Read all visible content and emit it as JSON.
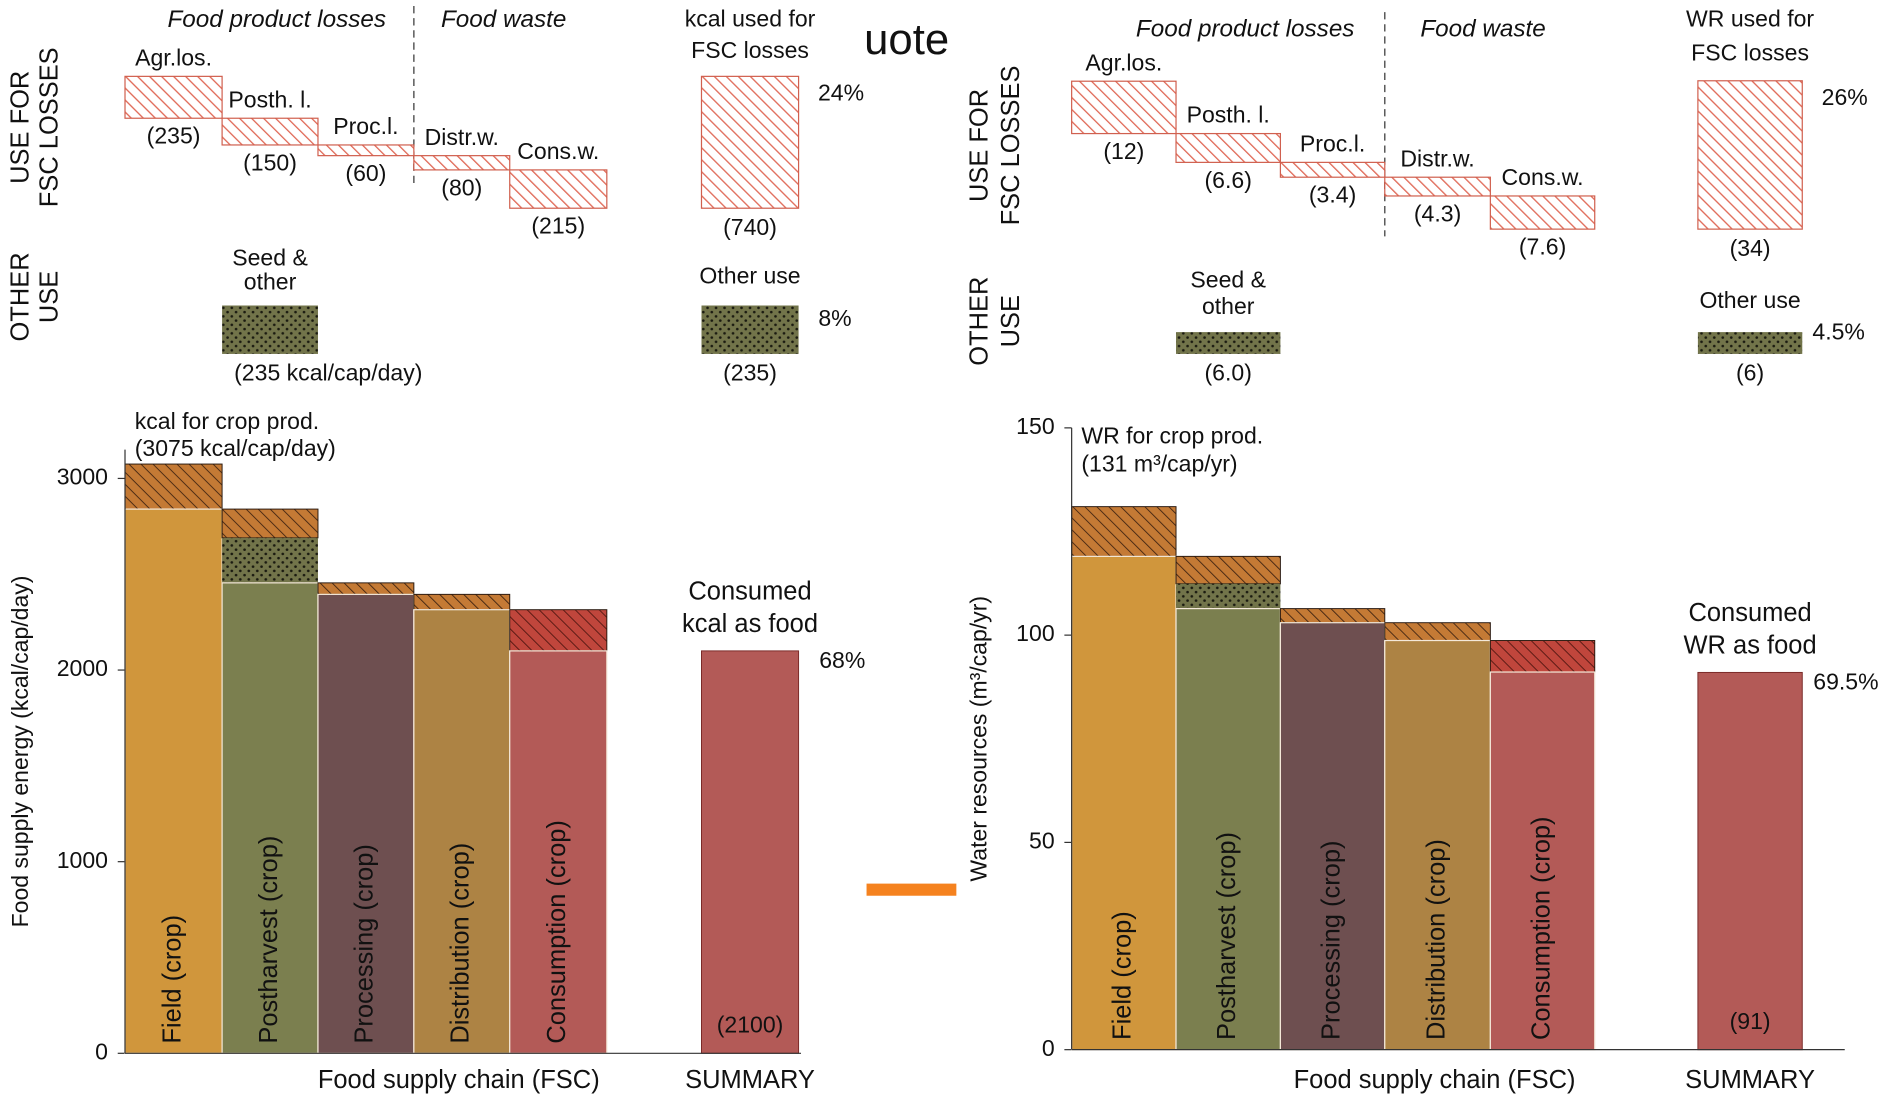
{
  "fragment_text": "uote",
  "chart_data": [
    {
      "type": "waterfall",
      "headers": [
        "Food product losses",
        "Food waste"
      ],
      "row_labels": [
        [
          "USE FOR",
          "FSC LOSSES"
        ],
        [
          "OTHER",
          "USE"
        ]
      ],
      "loss_summary_title": [
        "kcal used for",
        "FSC losses"
      ],
      "loss_categories": [
        "Agr.los.",
        "Posth. l.",
        "Proc.l.",
        "Distr.w.",
        "Cons.w."
      ],
      "losses": [
        235,
        150,
        60,
        80,
        215
      ],
      "loss_value_labels": [
        "(235)",
        "(150)",
        "(60)",
        "(80)",
        "(215)"
      ],
      "loss_total": 740,
      "loss_total_label": "(740)",
      "loss_share": {
        "value": 24,
        "label": "24%"
      },
      "other_title": [
        "Seed &",
        "other"
      ],
      "other_use": [
        null,
        235,
        null,
        null,
        null
      ],
      "other_value_labels": [
        null,
        "(235 kcal/cap/day)",
        null,
        null,
        null
      ],
      "other_summary_title": "Other use",
      "other_total": 235,
      "other_total_label": "(235)",
      "other_share": {
        "value": 8,
        "label": "8%"
      },
      "total_title": "kcal for crop prod.",
      "total": 3075,
      "total_label": "(3075 kcal/cap/day)",
      "categories": [
        "Field (crop)",
        "Postharvest (crop)",
        "Processing (crop)",
        "Distribution (crop)",
        "Consumption (crop)"
      ],
      "colors": [
        "#d0963c",
        "#7b7f4f",
        "#6e4f50",
        "#ad8344",
        "#b35a57"
      ],
      "consumed_title": [
        "Consumed",
        "kcal as food"
      ],
      "consumed": 2100,
      "consumed_label": "(2100)",
      "consumed_share": {
        "value": 68,
        "label": "68%"
      },
      "ylabel": "Food supply energy (kcal/cap/day)",
      "xlabel": "Food supply chain (FSC)",
      "summary_label": "SUMMARY",
      "ylim": [
        0,
        3150
      ],
      "yticks": [
        0,
        1000,
        2000,
        3000
      ]
    },
    {
      "type": "waterfall",
      "headers": [
        "Food product losses",
        "Food waste"
      ],
      "row_labels": [
        [
          "USE FOR",
          "FSC LOSSES"
        ],
        [
          "OTHER",
          "USE"
        ]
      ],
      "loss_summary_title": [
        "WR used for",
        "FSC losses"
      ],
      "loss_categories": [
        "Agr.los.",
        "Posth. l.",
        "Proc.l.",
        "Distr.w.",
        "Cons.w."
      ],
      "losses": [
        12,
        6.6,
        3.4,
        4.3,
        7.6
      ],
      "loss_value_labels": [
        "(12)",
        "(6.6)",
        "(3.4)",
        "(4.3)",
        "(7.6)"
      ],
      "loss_total": 34,
      "loss_total_label": "(34)",
      "loss_share": {
        "value": 26,
        "label": "26%"
      },
      "other_title": [
        "Seed &",
        "other"
      ],
      "other_use": [
        null,
        6,
        null,
        null,
        null
      ],
      "other_value_labels": [
        null,
        "(6.0)",
        null,
        null,
        null
      ],
      "other_summary_title": "Other use",
      "other_total": 6,
      "other_total_label": "(6)",
      "other_share": {
        "value": 4.5,
        "label": "4.5%"
      },
      "total_title": "WR for crop prod.",
      "total": 131,
      "total_label": "(131 m³/cap/yr)",
      "categories": [
        "Field (crop)",
        "Postharvest (crop)",
        "Processing (crop)",
        "Distribution (crop)",
        "Consumption (crop)"
      ],
      "colors": [
        "#d0963c",
        "#7b7f4f",
        "#6e4f50",
        "#ad8344",
        "#b35a57"
      ],
      "consumed_title": [
        "Consumed",
        "WR as food"
      ],
      "consumed": 91,
      "consumed_label": "(91)",
      "consumed_share": {
        "value": 69.5,
        "label": "69.5%"
      },
      "ylabel": "Water resources (m³/cap/yr)",
      "xlabel": "Food supply chain (FSC)",
      "summary_label": "SUMMARY",
      "ylim": [
        0,
        150
      ],
      "yticks": [
        0,
        50,
        100,
        150
      ]
    }
  ]
}
